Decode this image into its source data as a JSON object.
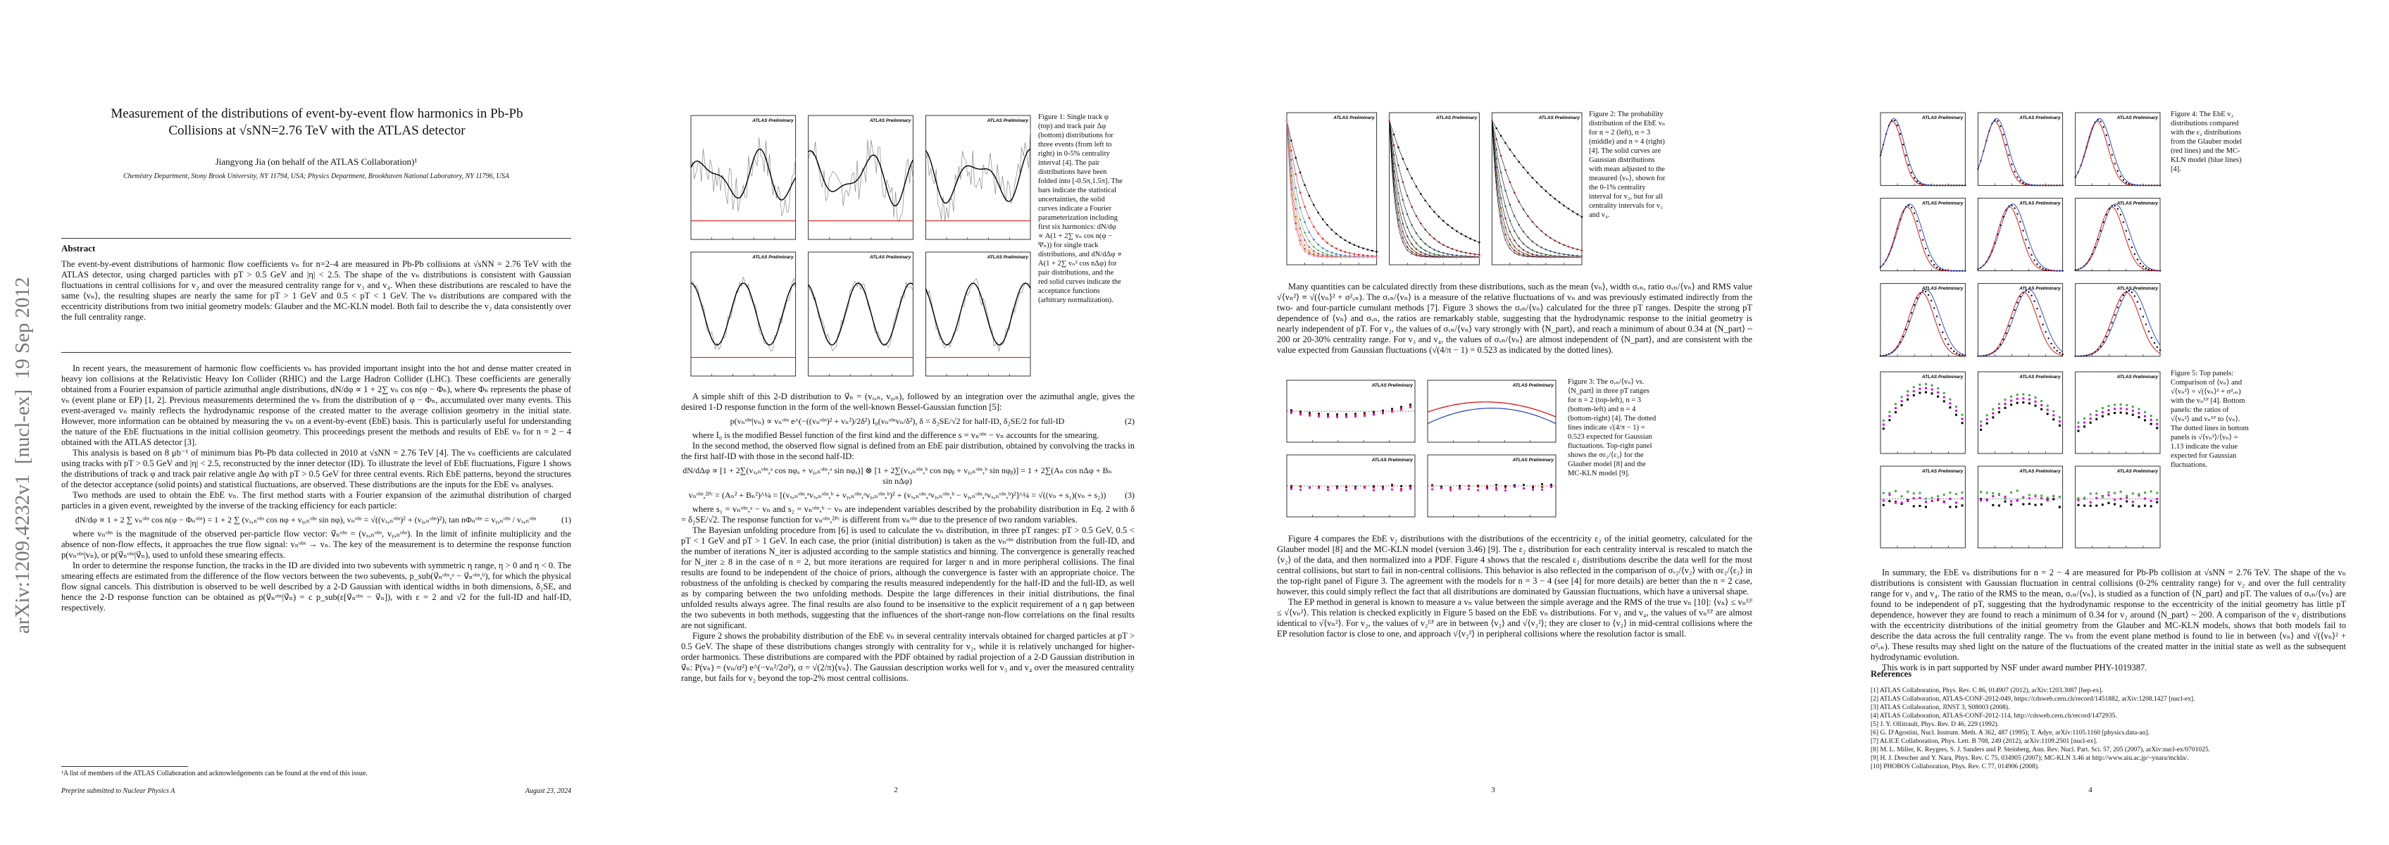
{
  "sidebar": "arXiv:1209.4232v1  [nucl-ex]  19 Sep 2012",
  "figure_label": "ATLAS Preliminary",
  "pages": [
    {
      "title": "Measurement of the distributions of event-by-event flow harmonics in Pb-Pb Collisions at √sNN=2.76 TeV with the ATLAS detector",
      "author": "Jiangyong Jia (on behalf of the ATLAS Collaboration)¹",
      "affiliation": "Chemistry Department, Stony Brook University, NY 11794, USA; Physics Department, Brookhaven National Laboratory, NY 11796, USA",
      "abstract_heading": "Abstract",
      "abstract": "The event-by-event distributions of harmonic flow coefficients vₙ for n=2–4 are measured in Pb-Pb collisions at √sNN = 2.76 TeV with the ATLAS detector, using charged particles with pT > 0.5 GeV and |η| < 2.5. The shape of the vₙ distributions is consistent with Gaussian fluctuations in central collisions for v₂ and over the measured centrality range for v₃ and v₄. When these distributions are rescaled to have the same ⟨vₙ⟩, the resulting shapes are nearly the same for pT > 1 GeV and 0.5 < pT < 1 GeV. The vₙ distributions are compared with the eccentricity distributions from two initial geometry models: Glauber and the MC-KLN model. Both fail to describe the v₂ data consistently over the full centrality range.",
      "content": [
        {
          "p": "In recent years, the measurement of harmonic flow coefficients vₙ has provided important insight into the hot and dense matter created in heavy ion collisions at the Relativistic Heavy Ion Collider (RHIC) and the Large Hadron Collider (LHC). These coefficients are generally obtained from a Fourier expansion of particle azimuthal angle distributions, dN/dφ ∝ 1 + 2∑ vₙ cos n(φ − Φₙ), where Φₙ represents the phase of vₙ (event plane or EP) [1, 2]. Previous measurements determined the vₙ from the distribution of φ − Φₙ, accumulated over many events. This event-averaged vₙ mainly reflects the hydrodynamic response of the created matter to the average collision geometry in the initial state. However, more information can be obtained by measuring the vₙ on a event-by-event (EbE) basis. This is particularly useful for understanding the nature of the EbE fluctuations in the initial collision geometry. This proceedings present the methods and results of EbE vₙ for n = 2 − 4 obtained with the ATLAS detector [3]."
        },
        {
          "p": "This analysis is based on 8 μb⁻¹ of minimum bias Pb-Pb data collected in 2010 at √sNN = 2.76 TeV [4]. The vₙ coefficients are calculated using tracks with pT > 0.5 GeV and |η| < 2.5, reconstructed by the inner detector (ID). To illustrate the level of EbE fluctuations, Figure 1 shows the distributions of track φ and track pair relative angle Δφ with pT > 0.5 GeV for three central events. Rich EbE patterns, beyond the structures of the detector acceptance (solid points) and statistical fluctuations, are observed. These distributions are the inputs for the EbE vₙ analyses."
        },
        {
          "p": "Two methods are used to obtain the EbE vₙ. The first method starts with a Fourier expansion of the azimuthal distribution of charged particles in a given event, reweighted by the inverse of the tracking efficiency for each particle:"
        },
        {
          "eq": "dN/dφ ∝ 1 + 2 ∑ vₙᵒᵇˢ cos n(φ − Φₙᵒᵇˢ) = 1 + 2 ∑ (vₓ,ₙᵒᵇˢ cos nφ + vᵧ,ₙᵒᵇˢ sin nφ),  vₙᵒᵇˢ = √((vₓ,ₙᵒᵇˢ)² + (vᵧ,ₙᵒᵇˢ)²),  tan nΦₙᵒᵇˢ = vᵧ,ₙᵒᵇˢ / vₓ,ₙᵒᵇˢ",
          "num": "(1)"
        },
        {
          "p": "where vₙᵒᵇˢ is the magnitude of the observed per-particle flow vector: v⃗ₙᵒᵇˢ = (vₓ,ₙᵒᵇˢ, vᵧ,ₙᵒᵇˢ). In the limit of infinite multiplicity and the absence of non-flow effects, it approaches the true flow signal: vₙᵒᵇˢ → vₙ. The key of the measurement is to determine the response function p(vₙᵒᵇˢ|vₙ), or p(v⃗ₙᵒᵇˢ|v⃗ₙ), used to unfold these smearing effects."
        },
        {
          "p": "In order to determine the response function, the tracks in the ID are divided into two subevents with symmetric η range, η > 0 and η < 0. The smearing effects are estimated from the difference of the flow vectors between the two subevents, p_sub(v⃗ₙᵒᵇˢ,ᵃ − v⃗ₙᵒᵇˢ,ᵇ), for which the physical flow signal cancels. This distribution is observed to be well described by a 2-D Gaussian with identical widths in both dimensions, δ₂SE, and hence the 2-D response function can be obtained as p(v⃗ₙᵒᵇˢ|v⃗ₙ) = c p_sub(ε[v⃗ₙᵒᵇˢ − v⃗ₙ]), with ε = 2 and √2 for the full-ID and half-ID, respectively."
        }
      ],
      "footnote": "¹A list of members of the ATLAS Collaboration and acknowledgements can be found at the end of this issue.",
      "footer_left": "Preprint submitted to Nuclear Physics A",
      "footer_right": "August 23, 2024"
    },
    {
      "figures": [
        {
          "caption": "Figure 1: Single track φ (top) and track pair Δφ (bottom) distributions for three events (from left to right) in 0-5% centrality interval [4]. The pair distributions have been folded into [-0.5π,1.5π]. The bars indicate the statistical uncertainties, the solid curves indicate a Fourier parameterization including first six harmonics: dN/dφ ∝ A(1 + 2∑ vₙ cos n(φ − Ψₙ)) for single track distributions, and dN/dΔφ ∝ A(1 + 2∑ vₙ² cos nΔφ) for pair distributions, and the red solid curves indicate the acceptance functions (arbitrary normalization)."
        }
      ],
      "content": [
        {
          "p": "A simple shift of this 2-D distribution to v⃗ₙ = (vₓ,ₙ, vᵧ,ₙ), followed by an integration over the azimuthal angle, gives the desired 1-D response function in the form of the well-known Bessel-Gaussian function [5]:"
        },
        {
          "eq": "p(vₙᵒᵇˢ|vₙ) ∝ vₙᵒᵇˢ e^(−((vₙᵒᵇˢ)² + vₙ²)/2δ²) I₀(vₙᵒᵇˢvₙ/δ²),  δ = δ₂SE/√2 for half-ID,  δ₂SE/2 for full-ID",
          "num": "(2)"
        },
        {
          "p": "where I₀ is the modified Bessel function of the first kind and the difference s = vₙᵒᵇˢ − vₙ accounts for the smearing."
        },
        {
          "p": "In the second method, the observed flow signal is defined from an EbE pair distribution, obtained by convolving the tracks in the first half-ID with those in the second half-ID:"
        },
        {
          "eq": "dN/dΔφ ∝ [1 + 2∑(vₓ,ₙᵒᵇˢ,ᵃ cos nφₐ + vᵧ,ₙᵒᵇˢ,ᵃ sin nφₐ)] ⊗ [1 + 2∑(vₓ,ₙᵒᵇˢ,ᵇ cos nφᵦ + vᵧ,ₙᵒᵇˢ,ᵇ sin nφᵦ)] = 1 + 2∑(Aₙ cos nΔφ + Bₙ sin nΔφ)",
          "num": ""
        },
        {
          "eq": "vₙᵒᵇˢ,²ᴾᶜ = (Aₙ² + Bₙ²)^¼ = [(vₓ,ₙᵒᵇˢ,ᵃvₓ,ₙᵒᵇˢ,ᵇ + vᵧ,ₙᵒᵇˢ,ᵃvᵧ,ₙᵒᵇˢ,ᵇ)² + (vₓ,ₙᵒᵇˢ,ᵃvᵧ,ₙᵒᵇˢ,ᵇ − vᵧ,ₙᵒᵇˢ,ᵃvₓ,ₙᵒᵇˢ,ᵇ)²]^¼ = √((vₙ + s₁)(vₙ + s₂))",
          "num": "(3)"
        },
        {
          "p": "where s₁ = vₙᵒᵇˢ,ᵃ − vₙ and s₂ = vₙᵒᵇˢ,ᵇ − vₙ are independent variables described by the probability distribution in Eq. 2 with δ = δ₂SE/√2. The response function for vₙᵒᵇˢ,²ᴾᶜ is different from vₙᵒᵇˢ due to the presence of two random variables."
        },
        {
          "p": "The Bayesian unfolding procedure from [6] is used to calculate the vₙ distribution, in three pT ranges: pT > 0.5 GeV, 0.5 < pT < 1 GeV and pT > 1 GeV. In each case, the prior (initial distribution) is taken as the vₙᵒᵇˢ distribution from the full-ID, and the number of iterations N_iter is adjusted according to the sample statistics and binning. The convergence is generally reached for N_iter ≥ 8 in the case of n = 2, but more iterations are required for larger n and in more peripheral collisions. The final results are found to be independent of the choice of priors, although the convergence is faster with an appropriate choice. The robustness of the unfolding is checked by comparing the results measured independently for the half-ID and the full-ID, as well as by comparing between the two unfolding methods. Despite the large differences in their initial distributions, the final unfolded results always agree. The final results are also found to be insensitive to the explicit requirement of a η gap between the two subevents in both methods, suggesting that the influences of the short-range non-flow correlations on the final results are not significant."
        },
        {
          "p": "Figure 2 shows the probability distribution of the EbE vₙ in several centrality intervals obtained for charged particles at pT > 0.5 GeV. The shape of these distributions changes strongly with centrality for v₂, while it is relatively unchanged for higher-order harmonics. These distributions are compared with the PDF obtained by radial projection of a 2-D Gaussian distribution in v⃗ₙ: P(vₙ) = (vₙ/σ²) e^(−vₙ²/2σ²), σ = √(2/π)⟨vₙ⟩. The Gaussian description works well for v₃ and v₄ over the measured centrality range, but fails for v₂ beyond the top-2% most central collisions."
        }
      ],
      "number": "2"
    },
    {
      "figures": [
        {
          "caption": "Figure 2: The probability distribution of the EbE vₙ for n = 2 (left), n = 3 (middle) and n = 4 (right) [4]. The solid curves are Gaussian distributions with mean adjusted to the measured ⟨vₙ⟩, shown for the 0-1% centrality interval for v₂, but for all centrality intervals for v₃ and v₄."
        },
        {
          "caption": "Figure 3: The σᵥₙ/⟨vₙ⟩ vs. ⟨N_part⟩ in three pT ranges for n = 2 (top-left), n = 3 (bottom-left) and n = 4 (bottom-right) [4]. The dotted lines indicate √(4/π − 1) = 0.523 expected for Gaussian fluctuations. Top-right panel shows the σε₂/⟨ε₂⟩ for the Glauber model [8] and the MC-KLN model [9]."
        }
      ],
      "content": [
        {
          "p": "Many quantities can be calculated directly from these distributions, such as the mean ⟨vₙ⟩, width σᵥₙ, ratio σᵥₙ/⟨vₙ⟩ and RMS value √⟨vₙ²⟩ ≡ √(⟨vₙ⟩² + σ²ᵥₙ). The σᵥₙ/⟨vₙ⟩ is a measure of the relative fluctuations of vₙ and was previously estimated indirectly from the two- and four-particle cumulant methods [7]. Figure 3 shows the σᵥₙ/⟨vₙ⟩ calculated for the three pT ranges. Despite the strong pT dependence of ⟨vₙ⟩ and σᵥₙ, the ratios are remarkably stable, suggesting that the hydrodynamic response to the initial geometry is nearly independent of pT. For v₂, the values of σᵥₙ/⟨vₙ⟩ vary strongly with ⟨N_part⟩, and reach a minimum of about 0.34 at ⟨N_part⟩ ~ 200 or 20-30% centrality range. For v₃ and v₄, the values of σᵥₙ/⟨vₙ⟩ are almost independent of ⟨N_part⟩, and are consistent with the value expected from Gaussian fluctuations (√(4/π − 1) = 0.523 as indicated by the dotted lines)."
        }
      ],
      "content2": [
        {
          "p": "Figure 4 compares the EbE v₂ distributions with the distributions of the eccentricity ε₂ of the initial geometry, calculated for the Glauber model [8] and the MC-KLN model (version 3.46) [9]. The ε₂ distribution for each centrality interval is rescaled to match the ⟨v₂⟩ of the data, and then normalized into a PDF. Figure 4 shows that the rescaled ε₂ distributions describe the data well for the most central collisions, but start to fail in non-central collisions. This behavior is also reflected in the comparison of σᵥ₂/⟨v₂⟩ with σε₂/⟨ε₂⟩ in the top-right panel of Figure 3. The agreement with the models for n = 3 − 4 (see [4] for more details) are better than the n = 2 case, however, this could simply reflect the fact that all distributions are dominated by Gaussian fluctuations, which have a universal shape."
        },
        {
          "p": "The EP method in general is known to measure a vₙ value between the simple average and the RMS of the true vₙ [10]: ⟨vₙ⟩ ≤ vₙᴱᴾ ≤ √⟨vₙ²⟩. This relation is checked explicitly in Figure 5 based on the EbE vₙ distributions. For v₃ and v₄, the values of vₙᴱᴾ are almost identical to √⟨vₙ²⟩. For v₂, the values of v₂ᴱᴾ are in between ⟨v₂⟩ and √⟨v₂²⟩; they are closer to ⟨v₂⟩ in mid-central collisions where the EP resolution factor is close to one, and approach √⟨v₂²⟩ in peripheral collisions where the resolution factor is small."
        }
      ],
      "number": "3"
    },
    {
      "figures": [
        {
          "caption": "Figure 4: The EbE v₂ distributions compared with the ε₂ distributions from the Glauber model (red lines) and the MC-KLN model (blue lines) [4]."
        },
        {
          "caption": "Figure 5: Top panels: Comparison of ⟨vₙ⟩ and √⟨vₙ²⟩ = √(⟨vₙ⟩² + σ²ᵥₙ) with the vₙᴱᴾ [4]. Bottom panels: the ratios of √⟨vₙ²⟩ and vₙᴱᴾ to ⟨vₙ⟩. The dotted lines in bottom panels is √⟨vₙ²⟩/⟨vₙ⟩ = 1.13 indicate the value expected for Gaussian fluctuations."
        }
      ],
      "content": [
        {
          "p": "In summary, the EbE vₙ distributions for n = 2 − 4 are measured for Pb-Pb collision at √sNN = 2.76 TeV. The shape of the vₙ distributions is consistent with Gaussian fluctuation in central collisions (0-2% centrality range) for v₂ and over the full centrality range for v₃ and v₄. The ratio of the RMS to the mean, σᵥₙ/⟨vₙ⟩, is studied as a function of ⟨N_part⟩ and pT. The values of σᵥₙ/⟨vₙ⟩ are found to be independent of pT, suggesting that the hydrodynamic response to the eccentricity of the initial geometry has little pT dependence, however they are found to reach a minimum of 0.34 for v₂ around ⟨N_part⟩ ~ 200. A comparison of the v₂ distributions with the eccentricity distributions of the initial geometry from the Glauber and MC-KLN models, shows that both models fail to describe the data across the full centrality range. The vₙ from the event plane method is found to lie in between ⟨vₙ⟩ and √(⟨vₙ⟩² + σ²ᵥₙ). These results may shed light on the nature of the fluctuations of the created matter in the initial state as well as the subsequent hydrodynamic evolution."
        },
        {
          "p": "This work is in part supported by NSF under award number PHY-1019387."
        }
      ],
      "references_heading": "References",
      "references": [
        "[1]  ATLAS Collaboration, Phys. Rev. C 86, 014907 (2012), arXiv:1203.3087 [hep-ex].",
        "[2]  ATLAS Collaboration, ATLAS-CONF-2012-049, https://cdsweb.cern.ch/record/1451882, arXiv:1208.1427 [nucl-ex].",
        "[3]  ATLAS Collaboration, JINST 3, S08003 (2008).",
        "[4]  ATLAS Collaboration, ATLAS-CONF-2012-114, http://cdsweb.cern.ch/record/1472935.",
        "[5]  J. Y. Ollitrault, Phys. Rev. D 46, 229 (1992).",
        "[6]  G. D'Agostini, Nucl. Instrum. Meth. A 362, 487 (1995); T. Adye, arXiv:1105.1160 [physics.data-an].",
        "[7]  ALICE Collaboration, Phys. Lett. B 708, 249 (2012), arXiv:1109.2501 [nucl-ex].",
        "[8]  M. L. Miller, K. Reygers, S. J. Sanders and P. Steinberg, Ann. Rev. Nucl. Part. Sci. 57, 205 (2007), arXiv:nucl-ex/0701025.",
        "[9]  H. J. Drescher and Y. Nara, Phys. Rev. C 75, 034905 (2007); MC-KLN 3.46 at http://www.aiu.ac.jp/~ynara/mckln/.",
        "[10] PHOBOS Collaboration, Phys. Rev. C 77, 014906 (2008)."
      ],
      "number": "4"
    }
  ]
}
